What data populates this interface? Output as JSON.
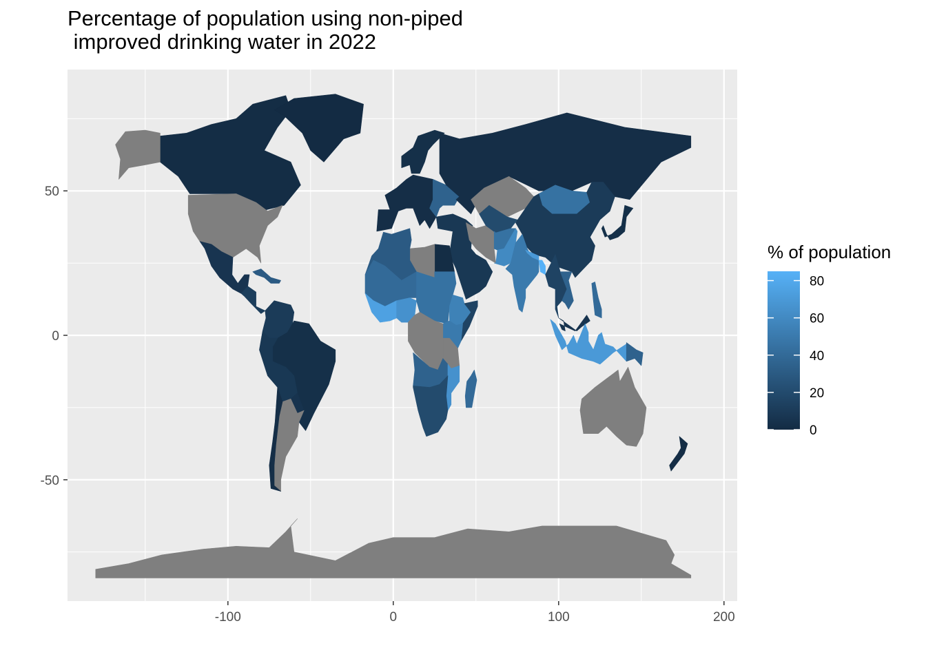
{
  "title": "Percentage of population using non-piped\n improved drinking water in 2022",
  "chart_data": {
    "type": "choropleth-map",
    "title": "Percentage of population using non-piped\n improved drinking water in 2022",
    "xlabel": "",
    "ylabel": "",
    "x_ticks": [
      -100,
      0,
      100,
      200
    ],
    "y_ticks": [
      -50,
      0,
      50
    ],
    "xlim": [
      -197,
      208
    ],
    "ylim": [
      -92,
      92
    ],
    "grid": true,
    "legend": {
      "title": "% of population",
      "position": "right",
      "ticks": [
        0,
        20,
        40,
        60,
        80
      ],
      "range": [
        0,
        85
      ],
      "low_color": "#132b43",
      "high_color": "#56b1f7"
    },
    "na_color": "#7f7f7f",
    "panel_color": "#ebebeb",
    "regions": [
      {
        "name": "Canada",
        "value": 1
      },
      {
        "name": "Greenland",
        "value": 0
      },
      {
        "name": "United States",
        "value": null
      },
      {
        "name": "Alaska",
        "value": null
      },
      {
        "name": "Mexico",
        "value": 6
      },
      {
        "name": "Central America",
        "value": 12
      },
      {
        "name": "Caribbean",
        "value": 30
      },
      {
        "name": "Colombia / Venezuela",
        "value": 10
      },
      {
        "name": "Brazil",
        "value": 3
      },
      {
        "name": "Andean countries",
        "value": 8
      },
      {
        "name": "Paraguay",
        "value": 5
      },
      {
        "name": "Argentina",
        "value": null
      },
      {
        "name": "Chile",
        "value": 2
      },
      {
        "name": "Europe",
        "value": 2
      },
      {
        "name": "Scandinavia",
        "value": 3
      },
      {
        "name": "Eastern Europe",
        "value": 35
      },
      {
        "name": "Russia",
        "value": 2
      },
      {
        "name": "Kazakhstan",
        "value": null
      },
      {
        "name": "Mongolia",
        "value": 45
      },
      {
        "name": "China",
        "value": 10
      },
      {
        "name": "Japan / Korea",
        "value": 3
      },
      {
        "name": "Middle East",
        "value": 8
      },
      {
        "name": "Egypt",
        "value": 1
      },
      {
        "name": "Libya",
        "value": null
      },
      {
        "name": "Iran",
        "value": null
      },
      {
        "name": "Central Asia",
        "value": 20
      },
      {
        "name": "Afghanistan",
        "value": 45
      },
      {
        "name": "Pakistan",
        "value": 60
      },
      {
        "name": "India",
        "value": 50
      },
      {
        "name": "Nepal",
        "value": 70
      },
      {
        "name": "Bangladesh",
        "value": 85
      },
      {
        "name": "Myanmar / Thailand",
        "value": 15
      },
      {
        "name": "Vietnam / Laos / Cambodia",
        "value": 35
      },
      {
        "name": "Philippines",
        "value": 40
      },
      {
        "name": "Malaysia",
        "value": 5
      },
      {
        "name": "Indonesia",
        "value": 70
      },
      {
        "name": "Papua New Guinea",
        "value": 35
      },
      {
        "name": "Australia",
        "value": null
      },
      {
        "name": "New Zealand",
        "value": 1
      },
      {
        "name": "North Africa (Maghreb)",
        "value": 30
      },
      {
        "name": "Sahel",
        "value": 40
      },
      {
        "name": "West Africa coast",
        "value": 75
      },
      {
        "name": "Nigeria",
        "value": 65
      },
      {
        "name": "Sudan / Chad",
        "value": 45
      },
      {
        "name": "Ethiopia",
        "value": 55
      },
      {
        "name": "Somalia / Horn",
        "value": 15
      },
      {
        "name": "Kenya / Uganda",
        "value": 50
      },
      {
        "name": "DR Congo",
        "value": null
      },
      {
        "name": "Tanzania",
        "value": null
      },
      {
        "name": "Angola / Zambia",
        "value": 35
      },
      {
        "name": "Malawi / Mozambique",
        "value": 65
      },
      {
        "name": "Southern Africa",
        "value": 20
      },
      {
        "name": "Madagascar",
        "value": 40
      },
      {
        "name": "Antarctica",
        "value": null
      }
    ]
  }
}
